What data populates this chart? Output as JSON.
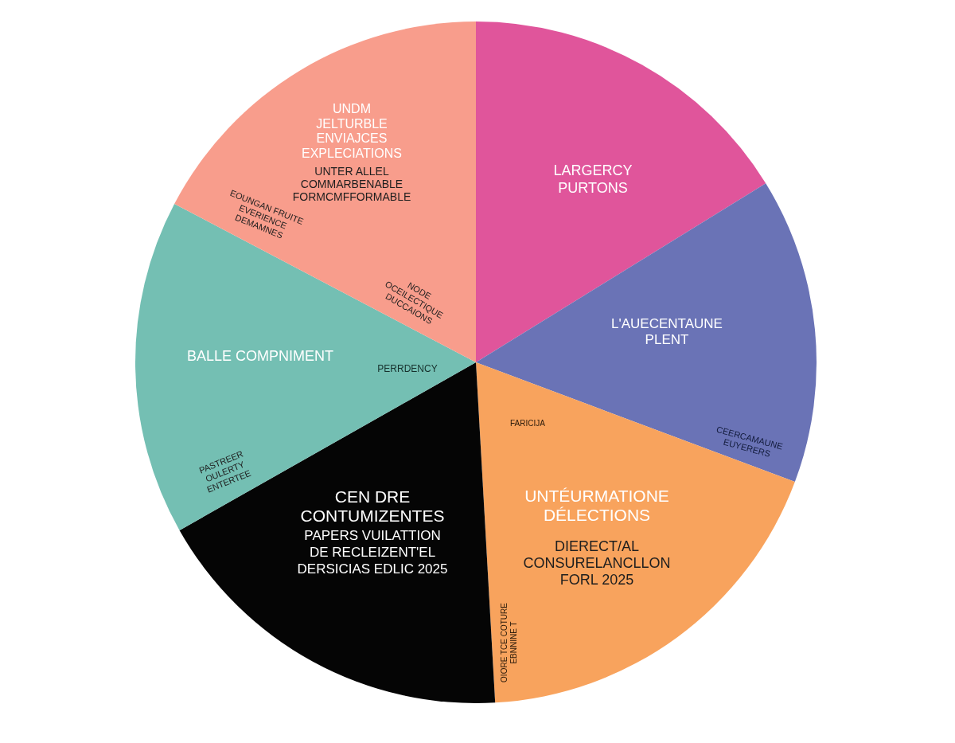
{
  "chart_data": {
    "type": "pie",
    "categories": [
      "LARGERCY\nPURTONS",
      "L'AUECENTAUNE\nPLENT",
      "UNTÉURMATIONE\nDÉLECTIONS",
      "CEN DRE\nCONTUMIZENTES",
      "BALLE COMPNIMENT",
      "UNDM\nJELTURBLE\nENVIAJCES\nEXPLECIATIONS"
    ],
    "values": [
      16.2,
      14.5,
      18.4,
      17.7,
      15.9,
      17.3
    ],
    "colors": [
      "#e0559b",
      "#6a73b6",
      "#f8a35d",
      "#050505",
      "#74bfb3",
      "#f89d8c"
    ],
    "annotations": [
      "UNTER ALLEL\nCOMMARBENABLE\nFORMCMFFORMABLE",
      "EOUNGAN FRUITE\nEVERIENCE\nDEMAMNES",
      "NODE\nOCEILECTIQUE\nDUCCAIONS",
      "PERRDENCY",
      "PASTREER\nOULERTY\nENTERTEE",
      "FARICIJA",
      "CEERCAMAUNE\nEUYERERS",
      "OIORE TCE COTURE\nEBNNINE T",
      "DIERECT/AL\nCONSURELANCLLON\nFORL 2025",
      "PAPERS VUILATTION\nDE RECLEIZENT'EL\nDERSICIAS EDLIC 2025"
    ]
  }
}
